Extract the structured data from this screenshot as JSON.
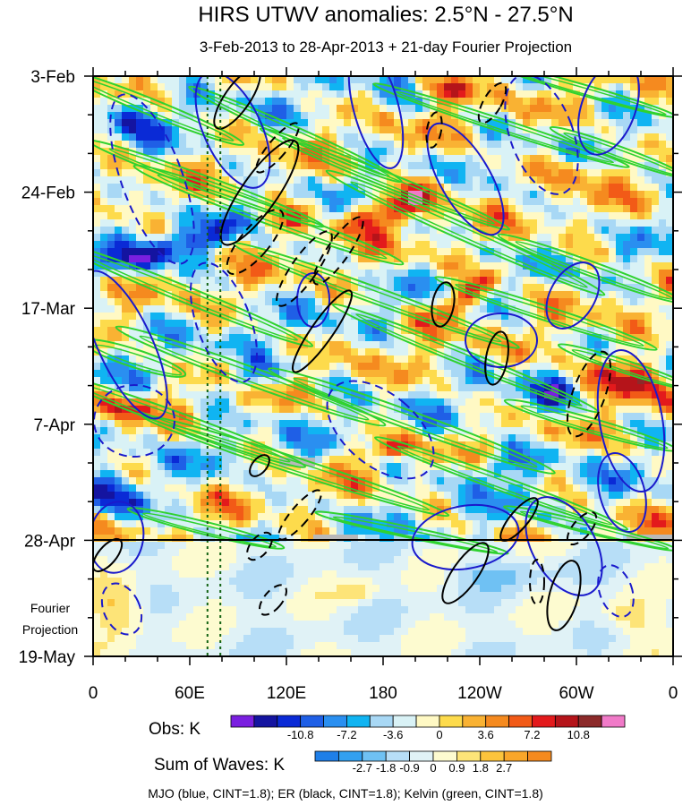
{
  "chart_data": {
    "type": "heatmap",
    "title": "HIRS UTWV anomalies: 2.5°N - 27.5°N",
    "subtitle": "3-Feb-2013 to 28-Apr-2013 + 21-day Fourier Projection",
    "x_axis": {
      "label": "",
      "ticks": [
        {
          "label": "0",
          "lon": 0
        },
        {
          "label": "60E",
          "lon": 60
        },
        {
          "label": "120E",
          "lon": 120
        },
        {
          "label": "180",
          "lon": 180
        },
        {
          "label": "120W",
          "lon": 240
        },
        {
          "label": "60W",
          "lon": 300
        },
        {
          "label": "0",
          "lon": 360
        }
      ],
      "range": [
        0,
        360
      ]
    },
    "y_axis": {
      "ticks": [
        {
          "label": "3-Feb",
          "day": 0
        },
        {
          "label": "24-Feb",
          "day": 21
        },
        {
          "label": "17-Mar",
          "day": 42
        },
        {
          "label": "7-Apr",
          "day": 63
        },
        {
          "label": "28-Apr",
          "day": 84
        },
        {
          "label": "19-May",
          "day": 105
        }
      ],
      "range_days": [
        0,
        105
      ],
      "direction": "downward"
    },
    "projection_start_day": 84,
    "projection_label_line1": "Fourier",
    "projection_label_line2": "Projection",
    "reference_longitudes": [
      71,
      79
    ],
    "obs_colorbar": {
      "label": "Obs: K",
      "levels": [
        "-10.8",
        "-7.2",
        "-3.6",
        "0",
        "3.6",
        "7.2",
        "10.8"
      ],
      "colors": [
        "#7a1fe0",
        "#1414a0",
        "#0a2ad6",
        "#1f5fe6",
        "#2a8ff0",
        "#10b4f2",
        "#a8d8f5",
        "#d9f2f6",
        "#fff9c4",
        "#fddb4c",
        "#f9b233",
        "#f58a1f",
        "#f25a17",
        "#e31a1c",
        "#b5141a",
        "#8c2a2a",
        "#f07ac8"
      ]
    },
    "waves_colorbar": {
      "label": "Sum of Waves: K",
      "levels": [
        "-2.7",
        "-1.8",
        "-0.9",
        "0",
        "0.9",
        "1.8",
        "2.7"
      ],
      "colors": [
        "#1f7fe8",
        "#32a0f0",
        "#6fc1f3",
        "#b7def7",
        "#e0f2f6",
        "#fdfbd0",
        "#fde478",
        "#fcc43c",
        "#f9a62a",
        "#f58a1f"
      ]
    },
    "waves_legend": "MJO (blue, CINT=1.8); ER (black, CINT=1.8); Kelvin (green, CINT=1.8)",
    "wave_colors": {
      "mjo": "#1a1acc",
      "er": "#000000",
      "kelvin": "#2fd22f"
    }
  }
}
